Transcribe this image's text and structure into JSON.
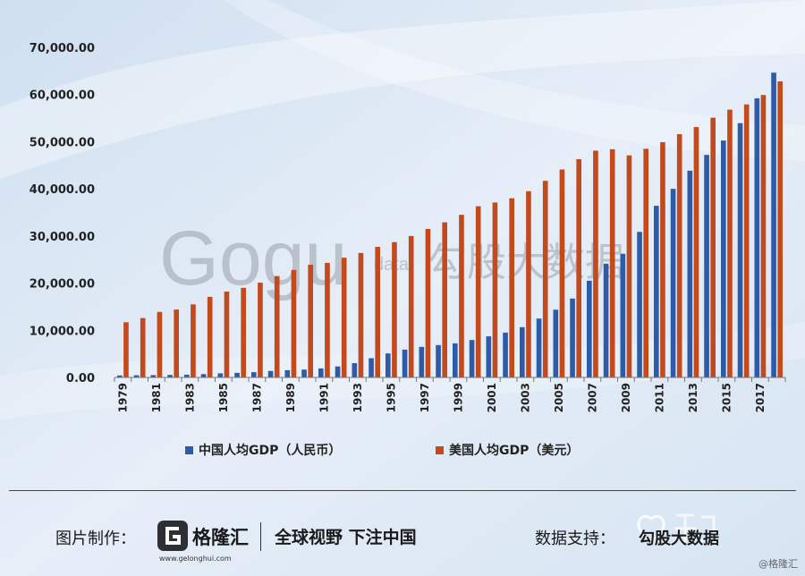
{
  "chart_data": {
    "type": "bar",
    "categories": [
      "1979",
      "1980",
      "1981",
      "1982",
      "1983",
      "1984",
      "1985",
      "1986",
      "1987",
      "1988",
      "1989",
      "1990",
      "1991",
      "1992",
      "1993",
      "1994",
      "1995",
      "1996",
      "1997",
      "1998",
      "1999",
      "2000",
      "2001",
      "2002",
      "2003",
      "2004",
      "2005",
      "2006",
      "2007",
      "2008",
      "2009",
      "2010",
      "2011",
      "2012",
      "2013",
      "2014",
      "2015",
      "2016",
      "2017",
      "2018"
    ],
    "x_tick_labels": [
      "1979",
      "1981",
      "1983",
      "1985",
      "1987",
      "1989",
      "1991",
      "1993",
      "1995",
      "1997",
      "1999",
      "2001",
      "2003",
      "2005",
      "2007",
      "2009",
      "2011",
      "2013",
      "2015",
      "2017"
    ],
    "series": [
      {
        "name": "中国人均GDP（人民币）",
        "color": "#2e5ba8",
        "values": [
          423,
          468,
          497,
          533,
          588,
          702,
          866,
          973,
          1123,
          1378,
          1536,
          1663,
          1912,
          2334,
          3027,
          4081,
          5091,
          5898,
          6481,
          6860,
          7229,
          7942,
          8717,
          9506,
          10666,
          12487,
          14368,
          16738,
          20505,
          24121,
          26222,
          30876,
          36403,
          40007,
          43852,
          47203,
          50251,
          53935,
          59201,
          64644
        ]
      },
      {
        "name": "美国人均GDP（美元）",
        "color": "#c24a1d",
        "values": [
          11700,
          12600,
          13900,
          14400,
          15500,
          17100,
          18200,
          19000,
          20100,
          21500,
          22800,
          23900,
          24300,
          25400,
          26400,
          27700,
          28700,
          30000,
          31500,
          32900,
          34500,
          36300,
          37100,
          38000,
          39500,
          41700,
          44100,
          46300,
          48100,
          48400,
          47100,
          48500,
          49900,
          51600,
          53100,
          55100,
          56800,
          57900,
          59900,
          62800
        ]
      }
    ],
    "yticks": [
      "0.00",
      "10,000.00",
      "20,000.00",
      "30,000.00",
      "40,000.00",
      "50,000.00",
      "60,000.00",
      "70,000.00"
    ],
    "ylim": [
      0,
      70000
    ],
    "grid": false,
    "legend_position": "bottom"
  },
  "watermark": {
    "logo_text": "Gogu",
    "sub_text": "data",
    "cn_text": "勾股大数据"
  },
  "footer": {
    "credit_label": "图片制作：",
    "brand_name": "格隆汇",
    "brand_url": "www.gelonghui.com",
    "slogan": "全球视野 下注中国",
    "support_label": "数据支持：",
    "support_name": "勾股大数据",
    "corner_mark": "@格隆汇"
  }
}
